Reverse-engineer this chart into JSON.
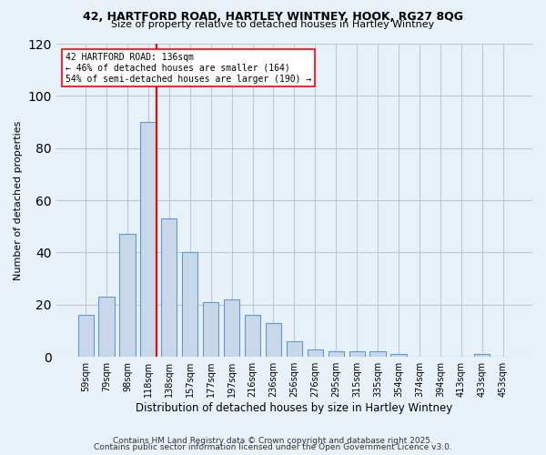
{
  "title1": "42, HARTFORD ROAD, HARTLEY WINTNEY, HOOK, RG27 8QG",
  "title2": "Size of property relative to detached houses in Hartley Wintney",
  "xlabel": "Distribution of detached houses by size in Hartley Wintney",
  "ylabel": "Number of detached properties",
  "categories": [
    "59sqm",
    "79sqm",
    "98sqm",
    "118sqm",
    "138sqm",
    "157sqm",
    "177sqm",
    "197sqm",
    "216sqm",
    "236sqm",
    "256sqm",
    "276sqm",
    "295sqm",
    "315sqm",
    "335sqm",
    "354sqm",
    "374sqm",
    "394sqm",
    "413sqm",
    "433sqm",
    "453sqm"
  ],
  "values": [
    16,
    23,
    47,
    90,
    53,
    40,
    21,
    22,
    16,
    13,
    6,
    3,
    2,
    2,
    2,
    1,
    0,
    0,
    0,
    1,
    0
  ],
  "bar_color": "#c8d8e8",
  "bar_edge_color": "#5b9bd5",
  "vline_color": "red",
  "annotation_line1": "42 HARTFORD ROAD: 136sqm",
  "annotation_line2": "← 46% of detached houses are smaller (164)",
  "annotation_line3": "54% of semi-detached houses are larger (190) →",
  "annotation_box_edge": "red",
  "annotation_box_face": "white",
  "grid_color": "#c0c8d0",
  "bg_color": "#e8f0f8",
  "footer1": "Contains HM Land Registry data © Crown copyright and database right 2025.",
  "footer2": "Contains public sector information licensed under the Open Government Licence v3.0.",
  "ylim": [
    0,
    120
  ],
  "yticks": [
    0,
    20,
    40,
    60,
    80,
    100,
    120
  ]
}
